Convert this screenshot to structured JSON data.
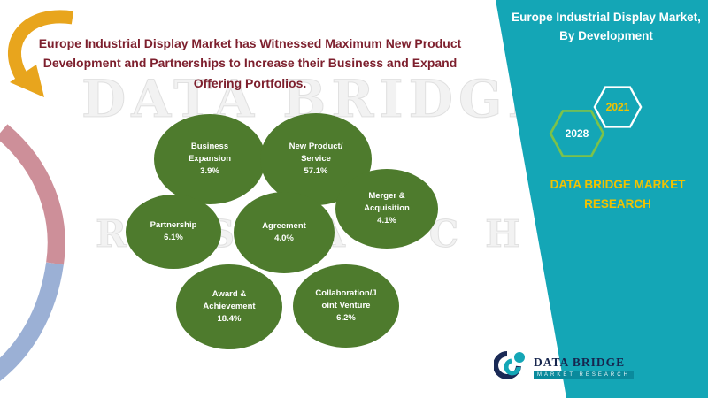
{
  "slide": {
    "headline": "Europe Industrial Display Market has Witnessed Maximum New Product Development and Partnerships to Increase their Business and Expand Offering Portfolios."
  },
  "watermark": {
    "line1": "DATA BRIDGE",
    "line2": "RESEARCH"
  },
  "panel": {
    "title": "Europe Industrial Display Market, By Development",
    "year_start": "2028",
    "year_end": "2021",
    "brand": "DATA BRIDGE MARKET RESEARCH"
  },
  "logo": {
    "name": "DATA BRIDGE",
    "tagline": "MARKET RESEARCH"
  },
  "colors": {
    "accent_teal": "#14a6b6",
    "headline_maroon": "#7d1f2d",
    "brand_gold": "#f2c200",
    "bubble_green": "#4e7b2d",
    "arrow_gold": "#e8a51d",
    "hexagon_green": "#7cc24a"
  },
  "chart_data": {
    "type": "bubble",
    "title": "Europe Industrial Display Market, By Development",
    "categories": [
      "Business Expansion",
      "New Product/Service",
      "Merger & Acquisition",
      "Partnership",
      "Agreement",
      "Award & Achievement",
      "Collaboration/Joint Venture"
    ],
    "values": [
      3.9,
      57.1,
      4.1,
      6.1,
      4.0,
      18.4,
      6.2
    ],
    "value_labels": [
      "3.9%",
      "57.1%",
      "4.1%",
      "6.1%",
      "4.0%",
      "18.4%",
      "6.2%"
    ],
    "label_lines": [
      [
        "Business",
        "Expansion"
      ],
      [
        "New Product/",
        "Service"
      ],
      [
        "Merger &",
        "Acquisition"
      ],
      [
        "Partnership"
      ],
      [
        "Agreement"
      ],
      [
        "Award &",
        "Achievement"
      ],
      [
        "Collaboration/J",
        "oint Venture"
      ]
    ],
    "unit": "%",
    "bubble_color": "#4e7b2d",
    "text_color": "#ffffff",
    "legend": "none"
  }
}
